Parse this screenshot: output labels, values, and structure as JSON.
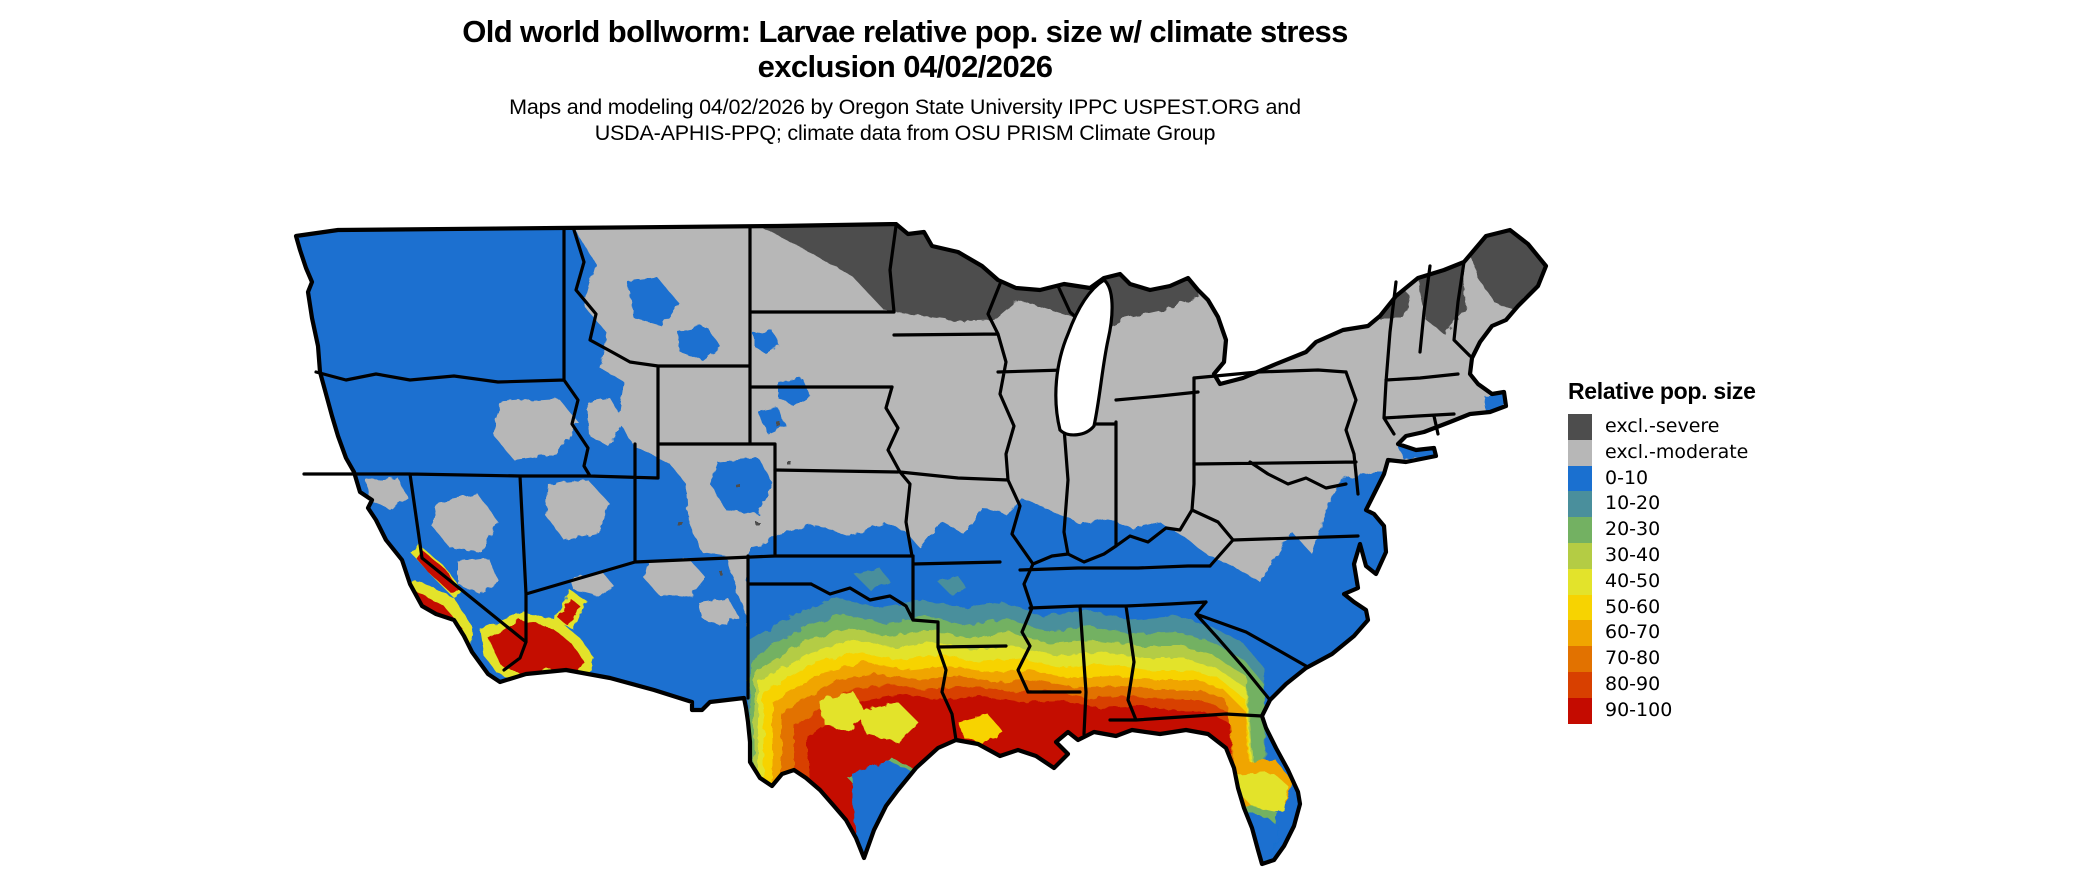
{
  "title": {
    "line1": "Old world bollworm: Larvae relative pop. size w/ climate stress",
    "line2": "exclusion 04/02/2026"
  },
  "subtitle": {
    "line1": "Maps and modeling 04/02/2026 by Oregon State University IPPC USPEST.ORG and",
    "line2": "USDA-APHIS-PPQ; climate data from OSU PRISM Climate Group"
  },
  "legend": {
    "title": "Relative pop. size",
    "items": [
      {
        "key": "severe",
        "label": "excl.-severe",
        "color": "#4d4d4d"
      },
      {
        "key": "moderate",
        "label": "excl.-moderate",
        "color": "#b7b7b7"
      },
      {
        "key": "b0",
        "label": "0-10",
        "color": "#1a70d0"
      },
      {
        "key": "b10",
        "label": "10-20",
        "color": "#4a8f9c"
      },
      {
        "key": "b20",
        "label": "20-30",
        "color": "#73b162"
      },
      {
        "key": "b30",
        "label": "30-40",
        "color": "#b4cc44"
      },
      {
        "key": "b40",
        "label": "40-50",
        "color": "#e3e32b"
      },
      {
        "key": "b50",
        "label": "50-60",
        "color": "#f7d301"
      },
      {
        "key": "b60",
        "label": "60-70",
        "color": "#f0a500"
      },
      {
        "key": "b70",
        "label": "70-80",
        "color": "#e27200"
      },
      {
        "key": "b80",
        "label": "80-90",
        "color": "#d84000"
      },
      {
        "key": "b90",
        "label": "90-100",
        "color": "#c40b00"
      }
    ]
  },
  "map": {
    "region": "Conterminous United States",
    "border_color": "#000000",
    "water_color": "#ffffff"
  }
}
